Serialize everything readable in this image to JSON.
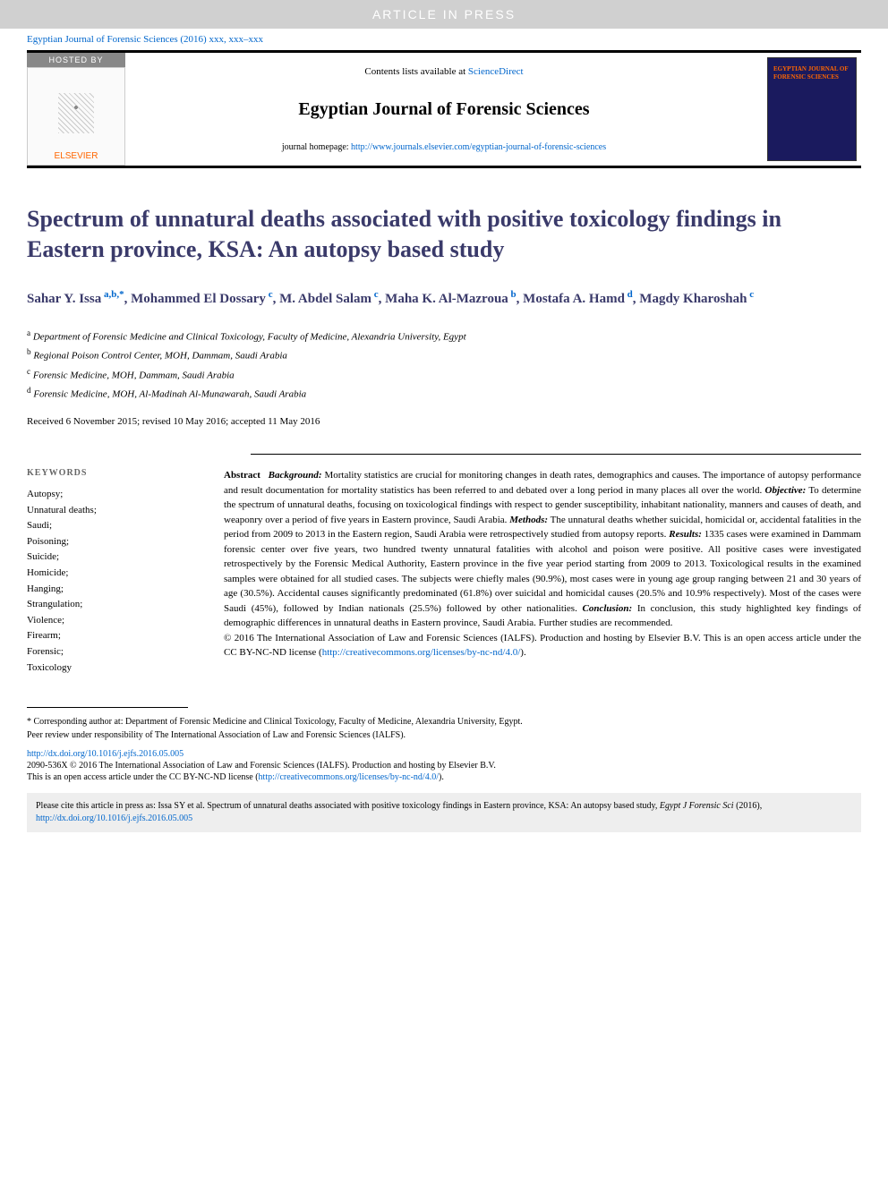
{
  "banner": {
    "article_in_press": "ARTICLE IN PRESS"
  },
  "citation_header": "Egyptian Journal of Forensic Sciences (2016) xxx, xxx–xxx",
  "header": {
    "hosted_by": "HOSTED BY",
    "publisher": "ELSEVIER",
    "contents_text": "Contents lists available at ",
    "contents_link": "ScienceDirect",
    "journal_name": "Egyptian Journal of Forensic Sciences",
    "homepage_label": "journal homepage: ",
    "homepage_url": "http://www.journals.elsevier.com/egyptian-journal-of-forensic-sciences",
    "cover_title": "EGYPTIAN JOURNAL OF FORENSIC SCIENCES"
  },
  "title": "Spectrum of unnatural deaths associated with positive toxicology findings in Eastern province, KSA: An autopsy based study",
  "authors": [
    {
      "name": "Sahar Y. Issa",
      "sup": "a,b,*"
    },
    {
      "name": "Mohammed El Dossary",
      "sup": "c"
    },
    {
      "name": "M. Abdel Salam",
      "sup": "c"
    },
    {
      "name": "Maha K. Al-Mazroua",
      "sup": "b"
    },
    {
      "name": "Mostafa A. Hamd",
      "sup": "d"
    },
    {
      "name": "Magdy Kharoshah",
      "sup": "c"
    }
  ],
  "affiliations": [
    {
      "sup": "a",
      "text": "Department of Forensic Medicine and Clinical Toxicology, Faculty of Medicine, Alexandria University, Egypt"
    },
    {
      "sup": "b",
      "text": "Regional Poison Control Center, MOH, Dammam, Saudi Arabia"
    },
    {
      "sup": "c",
      "text": "Forensic Medicine, MOH, Dammam, Saudi Arabia"
    },
    {
      "sup": "d",
      "text": "Forensic Medicine, MOH, Al-Madinah Al-Munawarah, Saudi Arabia"
    }
  ],
  "dates": "Received 6 November 2015; revised 10 May 2016; accepted 11 May 2016",
  "keywords": {
    "heading": "KEYWORDS",
    "items": [
      "Autopsy;",
      "Unnatural deaths;",
      "Saudi;",
      "Poisoning;",
      "Suicide;",
      "Homicide;",
      "Hanging;",
      "Strangulation;",
      "Violence;",
      "Firearm;",
      "Forensic;",
      "Toxicology"
    ]
  },
  "abstract": {
    "label": "Abstract",
    "background_label": "Background:",
    "background": " Mortality statistics are crucial for monitoring changes in death rates, demographics and causes. The importance of autopsy performance and result documentation for mortality statistics has been referred to and debated over a long period in many places all over the world. ",
    "objective_label": "Objective:",
    "objective": " To determine the spectrum of unnatural deaths, focusing on toxicological findings with respect to gender susceptibility, inhabitant nationality, manners and causes of death, and weaponry over a period of five years in Eastern province, Saudi Arabia. ",
    "methods_label": "Methods:",
    "methods": " The unnatural deaths whether suicidal, homicidal or, accidental fatalities in the period from 2009 to 2013 in the Eastern region, Saudi Arabia were retrospectively studied from autopsy reports. ",
    "results_label": "Results:",
    "results": " 1335 cases were examined in Dammam forensic center over five years, two hundred twenty unnatural fatalities with alcohol and poison were positive. All positive cases were investigated retrospectively by the Forensic Medical Authority, Eastern province in the five year period starting from 2009 to 2013. Toxicological results in the examined samples were obtained for all studied cases. The subjects were chiefly males (90.9%), most cases were in young age group ranging between 21 and 30 years of age (30.5%). Accidental causes significantly predominated (61.8%) over suicidal and homicidal causes (20.5% and 10.9% respectively). Most of the cases were Saudi (45%), followed by Indian nationals (25.5%) followed by other nationalities. ",
    "conclusion_label": "Conclusion:",
    "conclusion": " In conclusion, this study highlighted key findings of demographic differences in unnatural deaths in Eastern province, Saudi Arabia. Further studies are recommended.",
    "copyright": "© 2016 The International Association of Law and Forensic Sciences (IALFS). Production and hosting by Elsevier B.V. This is an open access article under the CC BY-NC-ND license (",
    "license_url": "http://creativecommons.org/licenses/by-nc-nd/4.0/",
    "license_close": ")."
  },
  "footnotes": {
    "corresponding": "* Corresponding author at: Department of Forensic Medicine and Clinical Toxicology, Faculty of Medicine, Alexandria University, Egypt.",
    "peer_review": "Peer review under responsibility of The International Association of Law and Forensic Sciences (IALFS)."
  },
  "doi": "http://dx.doi.org/10.1016/j.ejfs.2016.05.005",
  "bottom_copyright": {
    "line1": "2090-536X © 2016 The International Association of Law and Forensic Sciences (IALFS). Production and hosting by Elsevier B.V.",
    "line2_pre": "This is an open access article under the CC BY-NC-ND license (",
    "line2_url": "http://creativecommons.org/licenses/by-nc-nd/4.0/",
    "line2_post": ")."
  },
  "cite_box": {
    "text": "Please cite this article in press as: Issa SY et al. Spectrum of unnatural deaths associated with positive toxicology findings in Eastern province, KSA: An autopsy based study, ",
    "journal_italic": "Egypt J Forensic Sci",
    "year": " (2016), ",
    "doi": "http://dx.doi.org/10.1016/j.ejfs.2016.05.005"
  },
  "colors": {
    "banner_bg": "#d0d0d0",
    "link": "#0066cc",
    "heading": "#3a3a6a",
    "publisher": "#ff6600",
    "cover_bg": "#1a1a5e",
    "cite_bg": "#eeeeee"
  }
}
